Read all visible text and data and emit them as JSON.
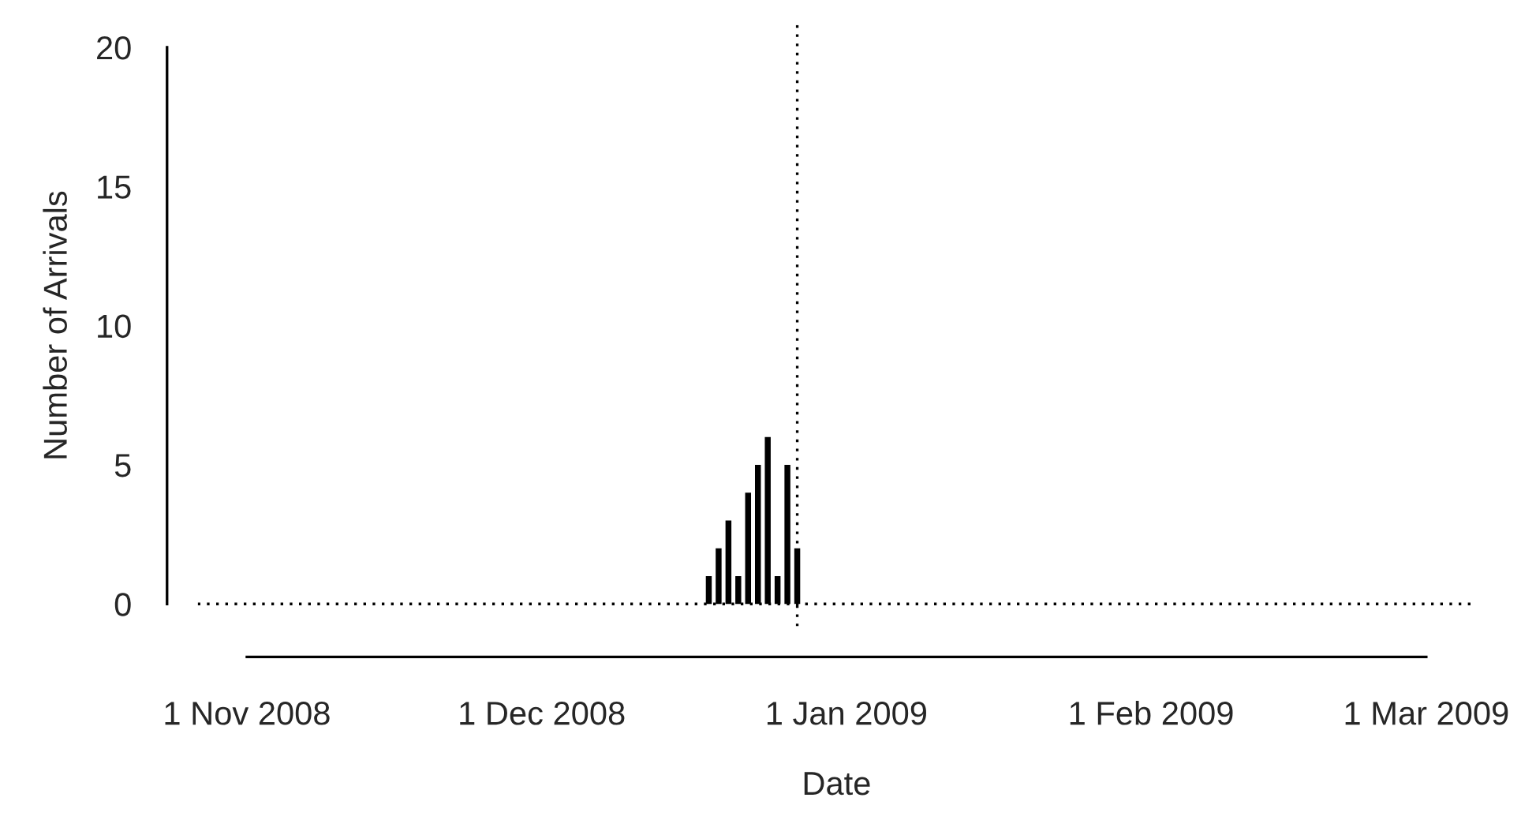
{
  "chart_data": {
    "type": "bar",
    "xlabel": "Date",
    "ylabel": "Number of Arrivals",
    "x": [
      "2008-12-18",
      "2008-12-19",
      "2008-12-20",
      "2008-12-21",
      "2008-12-22",
      "2008-12-23",
      "2008-12-24",
      "2008-12-25",
      "2008-12-26",
      "2008-12-27"
    ],
    "values": [
      1,
      2,
      3,
      1,
      4,
      5,
      6,
      1,
      5,
      2
    ],
    "color": "#000000",
    "xlim": [
      "2008-10-27",
      "2009-03-06"
    ],
    "xticks": [
      {
        "value": "2008-11-01",
        "label": "1 Nov 2008"
      },
      {
        "value": "2008-12-01",
        "label": "1 Dec 2008"
      },
      {
        "value": "2009-01-01",
        "label": "1 Jan 2009"
      },
      {
        "value": "2009-02-01",
        "label": "1 Feb 2009"
      },
      {
        "value": "2009-03-01",
        "label": "1 Mar 2009"
      }
    ],
    "ylim": [
      -0.8,
      20.8
    ],
    "yticks": [
      0,
      5,
      10,
      15,
      20
    ],
    "ref_lines": [
      {
        "axis": "y",
        "value": 0,
        "line_style": "dotted",
        "color": "#000000"
      },
      {
        "axis": "x",
        "value": "2008-12-27",
        "line_style": "dotted",
        "color": "#000000"
      }
    ],
    "grid": false,
    "legend": false
  }
}
